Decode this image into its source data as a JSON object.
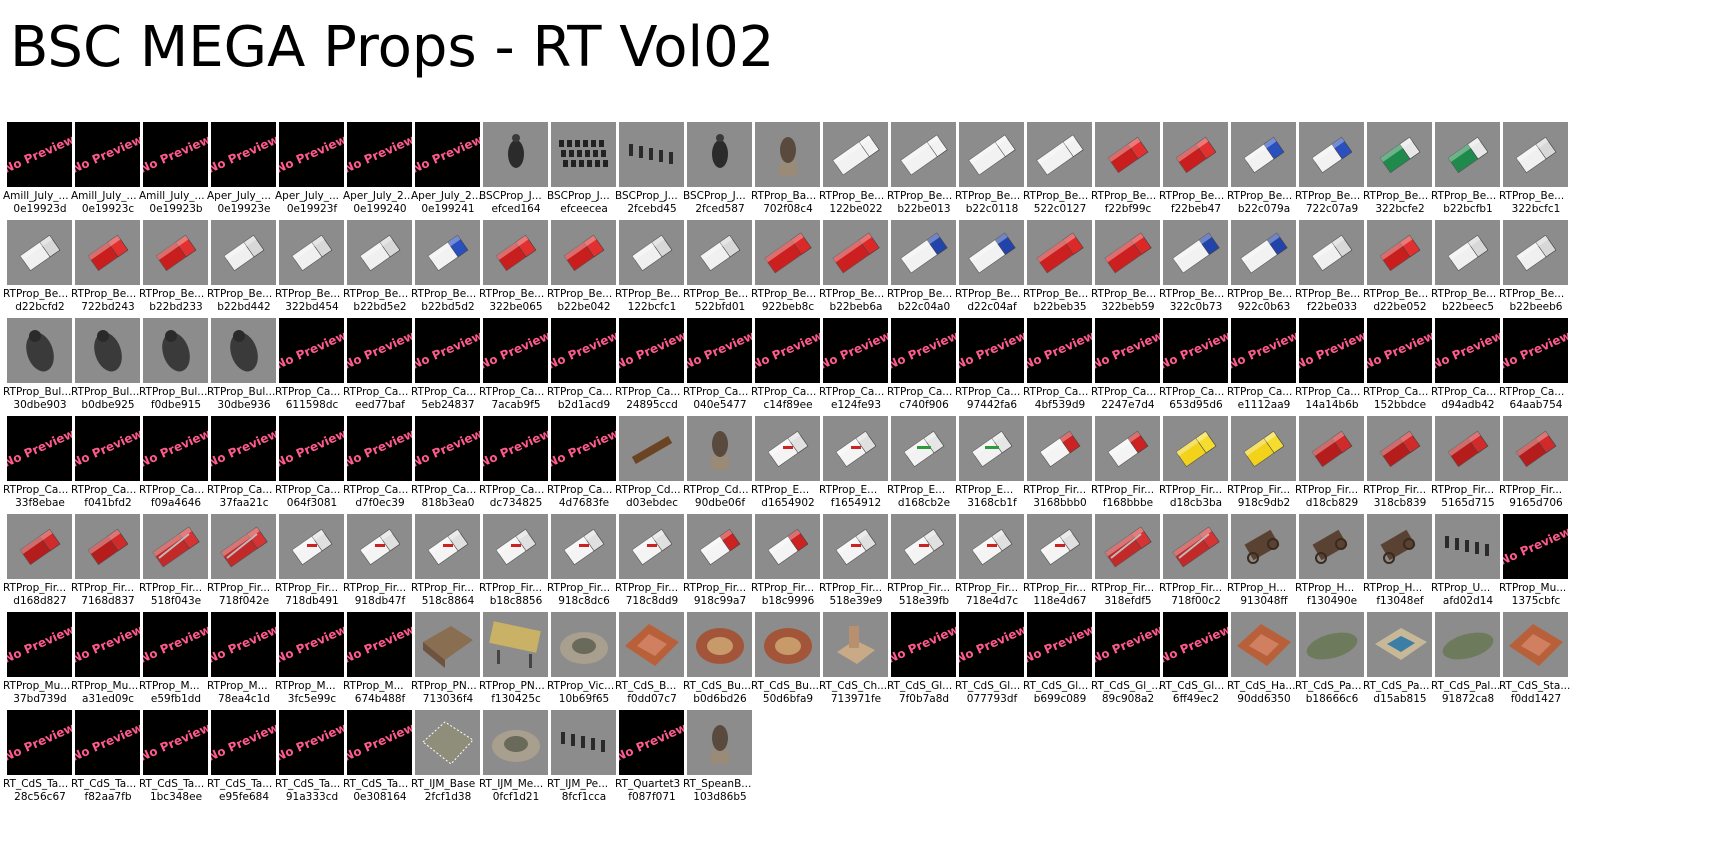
{
  "page": {
    "title": "BSC MEGA Props - RT Vol02"
  },
  "items": [
    {
      "name": "Amill_July_...",
      "id": "0e19923d",
      "thumb": "no-preview"
    },
    {
      "name": "Amill_July_...",
      "id": "0e19923c",
      "thumb": "no-preview"
    },
    {
      "name": "Amill_July_...",
      "id": "0e19923b",
      "thumb": "no-preview"
    },
    {
      "name": "Aper_July_...",
      "id": "0e19923e",
      "thumb": "no-preview"
    },
    {
      "name": "Aper_July_...",
      "id": "0e19923f",
      "thumb": "no-preview"
    },
    {
      "name": "Aper_July_2...",
      "id": "0e199240",
      "thumb": "no-preview"
    },
    {
      "name": "Aper_July_2...",
      "id": "0e199241",
      "thumb": "no-preview"
    },
    {
      "name": "BSCProp_J...",
      "id": "efced164",
      "thumb": "figure"
    },
    {
      "name": "BSCProp_J...",
      "id": "efceecea",
      "thumb": "seats"
    },
    {
      "name": "BSCProp_J...",
      "id": "2fcebd45",
      "thumb": "posts"
    },
    {
      "name": "BSCProp_J...",
      "id": "2fced587",
      "thumb": "figure"
    },
    {
      "name": "RTProp_Ba...",
      "id": "702f08c4",
      "thumb": "statue"
    },
    {
      "name": "RTProp_Be...",
      "id": "122be022",
      "thumb": "trailer-white"
    },
    {
      "name": "RTProp_Be...",
      "id": "b22be013",
      "thumb": "trailer-white"
    },
    {
      "name": "RTProp_Be...",
      "id": "b22c0118",
      "thumb": "trailer-white"
    },
    {
      "name": "RTProp_Be...",
      "id": "522c0127",
      "thumb": "trailer-white"
    },
    {
      "name": "RTProp_Be...",
      "id": "f22bf99c",
      "thumb": "truck-red"
    },
    {
      "name": "RTProp_Be...",
      "id": "f22beb47",
      "thumb": "truck-red"
    },
    {
      "name": "RTProp_Be...",
      "id": "b22c079a",
      "thumb": "truck-blue"
    },
    {
      "name": "RTProp_Be...",
      "id": "722c07a9",
      "thumb": "truck-blue"
    },
    {
      "name": "RTProp_Be...",
      "id": "322bcfe2",
      "thumb": "truck-green"
    },
    {
      "name": "RTProp_Be...",
      "id": "b22bcfb1",
      "thumb": "truck-green"
    },
    {
      "name": "RTProp_Be...",
      "id": "322bcfc1",
      "thumb": "truck-white"
    },
    {
      "name": "RTProp_Be...",
      "id": "d22bcfd2",
      "thumb": "truck-white"
    },
    {
      "name": "RTProp_Be...",
      "id": "722bd243",
      "thumb": "truck-red"
    },
    {
      "name": "RTProp_Be...",
      "id": "b22bd233",
      "thumb": "truck-red"
    },
    {
      "name": "RTProp_Be...",
      "id": "b22bd442",
      "thumb": "truck-white"
    },
    {
      "name": "RTProp_Be...",
      "id": "322bd454",
      "thumb": "truck-white"
    },
    {
      "name": "RTProp_Be...",
      "id": "b22bd5e2",
      "thumb": "truck-white"
    },
    {
      "name": "RTProp_Be...",
      "id": "b22bd5d2",
      "thumb": "truck-blue"
    },
    {
      "name": "RTProp_Be...",
      "id": "322be065",
      "thumb": "truck-red"
    },
    {
      "name": "RTProp_Be...",
      "id": "b22be042",
      "thumb": "truck-red"
    },
    {
      "name": "RTProp_Be...",
      "id": "122bcfc1",
      "thumb": "truck-white"
    },
    {
      "name": "RTProp_Be...",
      "id": "522bfd01",
      "thumb": "truck-white"
    },
    {
      "name": "RTProp_Be...",
      "id": "922beb8c",
      "thumb": "trailer-red"
    },
    {
      "name": "RTProp_Be...",
      "id": "b22beb6a",
      "thumb": "trailer-red"
    },
    {
      "name": "RTProp_Be...",
      "id": "b22c04a0",
      "thumb": "trailer-blue"
    },
    {
      "name": "RTProp_Be...",
      "id": "d22c04af",
      "thumb": "trailer-blue"
    },
    {
      "name": "RTProp_Be...",
      "id": "b22beb35",
      "thumb": "trailer-red"
    },
    {
      "name": "RTProp_Be...",
      "id": "322beb59",
      "thumb": "trailer-red"
    },
    {
      "name": "RTProp_Be...",
      "id": "322c0b73",
      "thumb": "trailer-blue"
    },
    {
      "name": "RTProp_Be...",
      "id": "922c0b63",
      "thumb": "trailer-blue"
    },
    {
      "name": "RTProp_Be...",
      "id": "f22be033",
      "thumb": "truck-white"
    },
    {
      "name": "RTProp_Be...",
      "id": "d22be052",
      "thumb": "truck-red"
    },
    {
      "name": "RTProp_Be...",
      "id": "b22beec5",
      "thumb": "truck-white"
    },
    {
      "name": "RTProp_Be...",
      "id": "b22beeb6",
      "thumb": "truck-white"
    },
    {
      "name": "RTProp_Bul...",
      "id": "30dbe903",
      "thumb": "bull"
    },
    {
      "name": "RTProp_Bul...",
      "id": "b0dbe925",
      "thumb": "bull"
    },
    {
      "name": "RTProp_Bul...",
      "id": "f0dbe915",
      "thumb": "bull"
    },
    {
      "name": "RTProp_Bul...",
      "id": "30dbe936",
      "thumb": "bull"
    },
    {
      "name": "RTProp_Ca...",
      "id": "611598dc",
      "thumb": "no-preview"
    },
    {
      "name": "RTProp_Ca...",
      "id": "eed77baf",
      "thumb": "no-preview"
    },
    {
      "name": "RTProp_Ca...",
      "id": "5eb24837",
      "thumb": "no-preview"
    },
    {
      "name": "RTProp_Ca...",
      "id": "7acab9f5",
      "thumb": "no-preview"
    },
    {
      "name": "RTProp_Ca...",
      "id": "b2d1acd9",
      "thumb": "no-preview"
    },
    {
      "name": "RTProp_Ca...",
      "id": "24895ccd",
      "thumb": "no-preview"
    },
    {
      "name": "RTProp_Ca...",
      "id": "040e5477",
      "thumb": "no-preview"
    },
    {
      "name": "RTProp_Ca...",
      "id": "c14f89ee",
      "thumb": "no-preview"
    },
    {
      "name": "RTProp_Ca...",
      "id": "e124fe93",
      "thumb": "no-preview"
    },
    {
      "name": "RTProp_Ca...",
      "id": "c740f906",
      "thumb": "no-preview"
    },
    {
      "name": "RTProp_Ca...",
      "id": "97442fa6",
      "thumb": "no-preview"
    },
    {
      "name": "RTProp_Ca...",
      "id": "4bf539d9",
      "thumb": "no-preview"
    },
    {
      "name": "RTProp_Ca...",
      "id": "2247e7d4",
      "thumb": "no-preview"
    },
    {
      "name": "RTProp_Ca...",
      "id": "653d95d6",
      "thumb": "no-preview"
    },
    {
      "name": "RTProp_Ca...",
      "id": "e1112aa9",
      "thumb": "no-preview"
    },
    {
      "name": "RTProp_Ca...",
      "id": "14a14b6b",
      "thumb": "no-preview"
    },
    {
      "name": "RTProp_Ca...",
      "id": "152bbdce",
      "thumb": "no-preview"
    },
    {
      "name": "RTProp_Ca...",
      "id": "d94adb42",
      "thumb": "no-preview"
    },
    {
      "name": "RTProp_Ca...",
      "id": "64aab754",
      "thumb": "no-preview"
    },
    {
      "name": "RTProp_Ca...",
      "id": "33f8ebae",
      "thumb": "no-preview"
    },
    {
      "name": "RTProp_Ca...",
      "id": "f041bfd2",
      "thumb": "no-preview"
    },
    {
      "name": "RTProp_Ca...",
      "id": "f09a4646",
      "thumb": "no-preview"
    },
    {
      "name": "RTProp_Ca...",
      "id": "37faa21c",
      "thumb": "no-preview"
    },
    {
      "name": "RTProp_Ca...",
      "id": "064f3081",
      "thumb": "no-preview"
    },
    {
      "name": "RTProp_Ca...",
      "id": "d7f0ec39",
      "thumb": "no-preview"
    },
    {
      "name": "RTProp_Ca...",
      "id": "818b3ea0",
      "thumb": "no-preview"
    },
    {
      "name": "RTProp_Ca...",
      "id": "dc734825",
      "thumb": "no-preview"
    },
    {
      "name": "RTProp_Ca...",
      "id": "4d7683fe",
      "thumb": "no-preview"
    },
    {
      "name": "RTProp_Cd...",
      "id": "d03ebdec",
      "thumb": "bench"
    },
    {
      "name": "RTProp_Cd...",
      "id": "90dbe06f",
      "thumb": "statue"
    },
    {
      "name": "RTProp_E...",
      "id": "d1654902",
      "thumb": "ambulance"
    },
    {
      "name": "RTProp_E...",
      "id": "f1654912",
      "thumb": "ambulance"
    },
    {
      "name": "RTProp_E...",
      "id": "d168cb2e",
      "thumb": "ambulance-green"
    },
    {
      "name": "RTProp_E...",
      "id": "3168cb1f",
      "thumb": "ambulance-green"
    },
    {
      "name": "RTProp_Fir...",
      "id": "3168bbb0",
      "thumb": "firecar"
    },
    {
      "name": "RTProp_Fir...",
      "id": "f168bbbe",
      "thumb": "firecar"
    },
    {
      "name": "RTProp_Fir...",
      "id": "d18cb3ba",
      "thumb": "yellowcar"
    },
    {
      "name": "RTProp_Fir...",
      "id": "918c9db2",
      "thumb": "yellowcar"
    },
    {
      "name": "RTProp_Fir...",
      "id": "d18cb829",
      "thumb": "firetruck"
    },
    {
      "name": "RTProp_Fir...",
      "id": "318cb839",
      "thumb": "firetruck"
    },
    {
      "name": "RTProp_Fir...",
      "id": "5165d715",
      "thumb": "firetruck"
    },
    {
      "name": "RTProp_Fir...",
      "id": "9165d706",
      "thumb": "firetruck"
    },
    {
      "name": "RTProp_Fir...",
      "id": "d168d827",
      "thumb": "firetruck"
    },
    {
      "name": "RTProp_Fir...",
      "id": "7168d837",
      "thumb": "firetruck"
    },
    {
      "name": "RTProp_Fir...",
      "id": "518f043e",
      "thumb": "ladder"
    },
    {
      "name": "RTProp_Fir...",
      "id": "718f042e",
      "thumb": "ladder"
    },
    {
      "name": "RTProp_Fir...",
      "id": "718db491",
      "thumb": "ambulance"
    },
    {
      "name": "RTProp_Fir...",
      "id": "918db47f",
      "thumb": "ambulance"
    },
    {
      "name": "RTProp_Fir...",
      "id": "518c8864",
      "thumb": "ambulance"
    },
    {
      "name": "RTProp_Fir...",
      "id": "b18c8856",
      "thumb": "ambulance"
    },
    {
      "name": "RTProp_Fir...",
      "id": "918c8dc6",
      "thumb": "ambulance"
    },
    {
      "name": "RTProp_Fir...",
      "id": "718c8dd9",
      "thumb": "ambulance"
    },
    {
      "name": "RTProp_Fir...",
      "id": "918c99a7",
      "thumb": "firecar"
    },
    {
      "name": "RTProp_Fir...",
      "id": "b18c9996",
      "thumb": "firecar"
    },
    {
      "name": "RTProp_Fir...",
      "id": "518e39e9",
      "thumb": "ambulance"
    },
    {
      "name": "RTProp_Fir...",
      "id": "518e39fb",
      "thumb": "ambulance"
    },
    {
      "name": "RTProp_Fir...",
      "id": "718e4d7c",
      "thumb": "ambulance"
    },
    {
      "name": "RTProp_Fir...",
      "id": "118e4d67",
      "thumb": "ambulance"
    },
    {
      "name": "RTProp_Fir...",
      "id": "318efdf5",
      "thumb": "ladder"
    },
    {
      "name": "RTProp_Fir...",
      "id": "718f00c2",
      "thumb": "ladder"
    },
    {
      "name": "RTProp_H...",
      "id": "913048ff",
      "thumb": "wagon"
    },
    {
      "name": "RTProp_H...",
      "id": "f130490e",
      "thumb": "wagon"
    },
    {
      "name": "RTProp_H...",
      "id": "f13048ef",
      "thumb": "wagon"
    },
    {
      "name": "RTProp_U...",
      "id": "afd02d14",
      "thumb": "posts"
    },
    {
      "name": "RTProp_Mu...",
      "id": "1375cbfc",
      "thumb": "no-preview"
    },
    {
      "name": "RTProp_Mu...",
      "id": "37bd739d",
      "thumb": "no-preview"
    },
    {
      "name": "RTProp_Mu...",
      "id": "a31ed09c",
      "thumb": "no-preview"
    },
    {
      "name": "RTProp_M...",
      "id": "e59fb1dd",
      "thumb": "no-preview"
    },
    {
      "name": "RTProp_M...",
      "id": "78ea4c1d",
      "thumb": "no-preview"
    },
    {
      "name": "RTProp_M...",
      "id": "3fc5e99c",
      "thumb": "no-preview"
    },
    {
      "name": "RTProp_M...",
      "id": "674b488f",
      "thumb": "no-preview"
    },
    {
      "name": "RTProp_PN...",
      "id": "713036f4",
      "thumb": "building"
    },
    {
      "name": "RTProp_PN...",
      "id": "f130425c",
      "thumb": "sign"
    },
    {
      "name": "RTProp_Vic...",
      "id": "10b69f65",
      "thumb": "plaza"
    },
    {
      "name": "RT_CdS_B...",
      "id": "f0dd07c7",
      "thumb": "roof"
    },
    {
      "name": "RT_CdS_Bu...",
      "id": "b0d6bd26",
      "thumb": "arena"
    },
    {
      "name": "RT_CdS_Bu...",
      "id": "50d6bfa9",
      "thumb": "arena"
    },
    {
      "name": "RT_CdS_Ch...",
      "id": "713971fe",
      "thumb": "church"
    },
    {
      "name": "RT_CdS_Gl...",
      "id": "7f0b7a8d",
      "thumb": "no-preview"
    },
    {
      "name": "RT_CdS_Gl...",
      "id": "077793df",
      "thumb": "no-preview"
    },
    {
      "name": "RT_CdS_Gl...",
      "id": "b699c089",
      "thumb": "no-preview"
    },
    {
      "name": "RT_CdS_Gl_...",
      "id": "89c908a2",
      "thumb": "no-preview"
    },
    {
      "name": "RT_CdS_Gl...",
      "id": "6ff49ec2",
      "thumb": "no-preview"
    },
    {
      "name": "RT_CdS_Ha...",
      "id": "90dd6350",
      "thumb": "roof"
    },
    {
      "name": "RT_CdS_Pa...",
      "id": "b18666c6",
      "thumb": "garden"
    },
    {
      "name": "RT_CdS_Pa...",
      "id": "d15ab815",
      "thumb": "pool"
    },
    {
      "name": "RT_CdS_Pal...",
      "id": "91872ca8",
      "thumb": "garden"
    },
    {
      "name": "RT_CdS_Sta...",
      "id": "f0dd1427",
      "thumb": "roof"
    },
    {
      "name": "RT_CdS_Ta...",
      "id": "28c56c67",
      "thumb": "no-preview"
    },
    {
      "name": "RT_CdS_Ta...",
      "id": "f82aa7fb",
      "thumb": "no-preview"
    },
    {
      "name": "RT_CdS_Ta...",
      "id": "1bc348ee",
      "thumb": "no-preview"
    },
    {
      "name": "RT_CdS_Ta...",
      "id": "e95fe684",
      "thumb": "no-preview"
    },
    {
      "name": "RT_CdS_Ta...",
      "id": "91a333cd",
      "thumb": "no-preview"
    },
    {
      "name": "RT_CdS_Ta...",
      "id": "0e308164",
      "thumb": "no-preview"
    },
    {
      "name": "RT_IJM_Base",
      "id": "2fcf1d38",
      "thumb": "base"
    },
    {
      "name": "RT_IJM_Me...",
      "id": "0fcf1d21",
      "thumb": "plaza"
    },
    {
      "name": "RT_IJM_Pe...",
      "id": "8fcf1cca",
      "thumb": "posts"
    },
    {
      "name": "RT_Quartet3",
      "id": "f087f071",
      "thumb": "no-preview"
    },
    {
      "name": "RT_SpeanB...",
      "id": "103d86b5",
      "thumb": "statue"
    }
  ],
  "no_preview_text": "No Preview",
  "colors": {
    "thumb_bg": "#8c8c8c",
    "no_preview_bg": "#000000",
    "no_preview_text": "#ff5a8c"
  }
}
